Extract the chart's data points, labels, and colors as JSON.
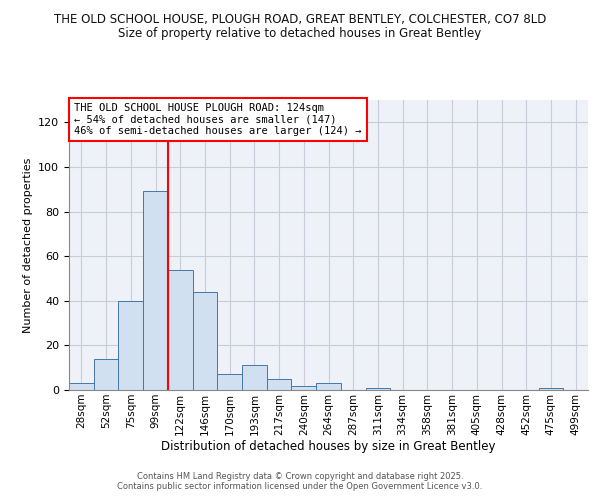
{
  "title_line1": "THE OLD SCHOOL HOUSE, PLOUGH ROAD, GREAT BENTLEY, COLCHESTER, CO7 8LD",
  "title_line2": "Size of property relative to detached houses in Great Bentley",
  "xlabel": "Distribution of detached houses by size in Great Bentley",
  "ylabel": "Number of detached properties",
  "bar_color": "#D0E0F0",
  "bar_edge_color": "#4477AA",
  "categories": [
    "28sqm",
    "52sqm",
    "75sqm",
    "99sqm",
    "122sqm",
    "146sqm",
    "170sqm",
    "193sqm",
    "217sqm",
    "240sqm",
    "264sqm",
    "287sqm",
    "311sqm",
    "334sqm",
    "358sqm",
    "381sqm",
    "405sqm",
    "428sqm",
    "452sqm",
    "475sqm",
    "499sqm"
  ],
  "values": [
    3,
    14,
    40,
    89,
    54,
    44,
    7,
    11,
    5,
    2,
    3,
    0,
    1,
    0,
    0,
    0,
    0,
    0,
    0,
    1,
    0
  ],
  "ylim": [
    0,
    130
  ],
  "yticks": [
    0,
    20,
    40,
    60,
    80,
    100,
    120
  ],
  "red_line_x": 3.5,
  "annotation_text": "THE OLD SCHOOL HOUSE PLOUGH ROAD: 124sqm\n← 54% of detached houses are smaller (147)\n46% of semi-detached houses are larger (124) →",
  "footer_line1": "Contains HM Land Registry data © Crown copyright and database right 2025.",
  "footer_line2": "Contains public sector information licensed under the Open Government Licence v3.0.",
  "plot_bg_color": "#EEF2F8",
  "grid_color": "#C8CCD8",
  "fig_bg_color": "#FFFFFF"
}
